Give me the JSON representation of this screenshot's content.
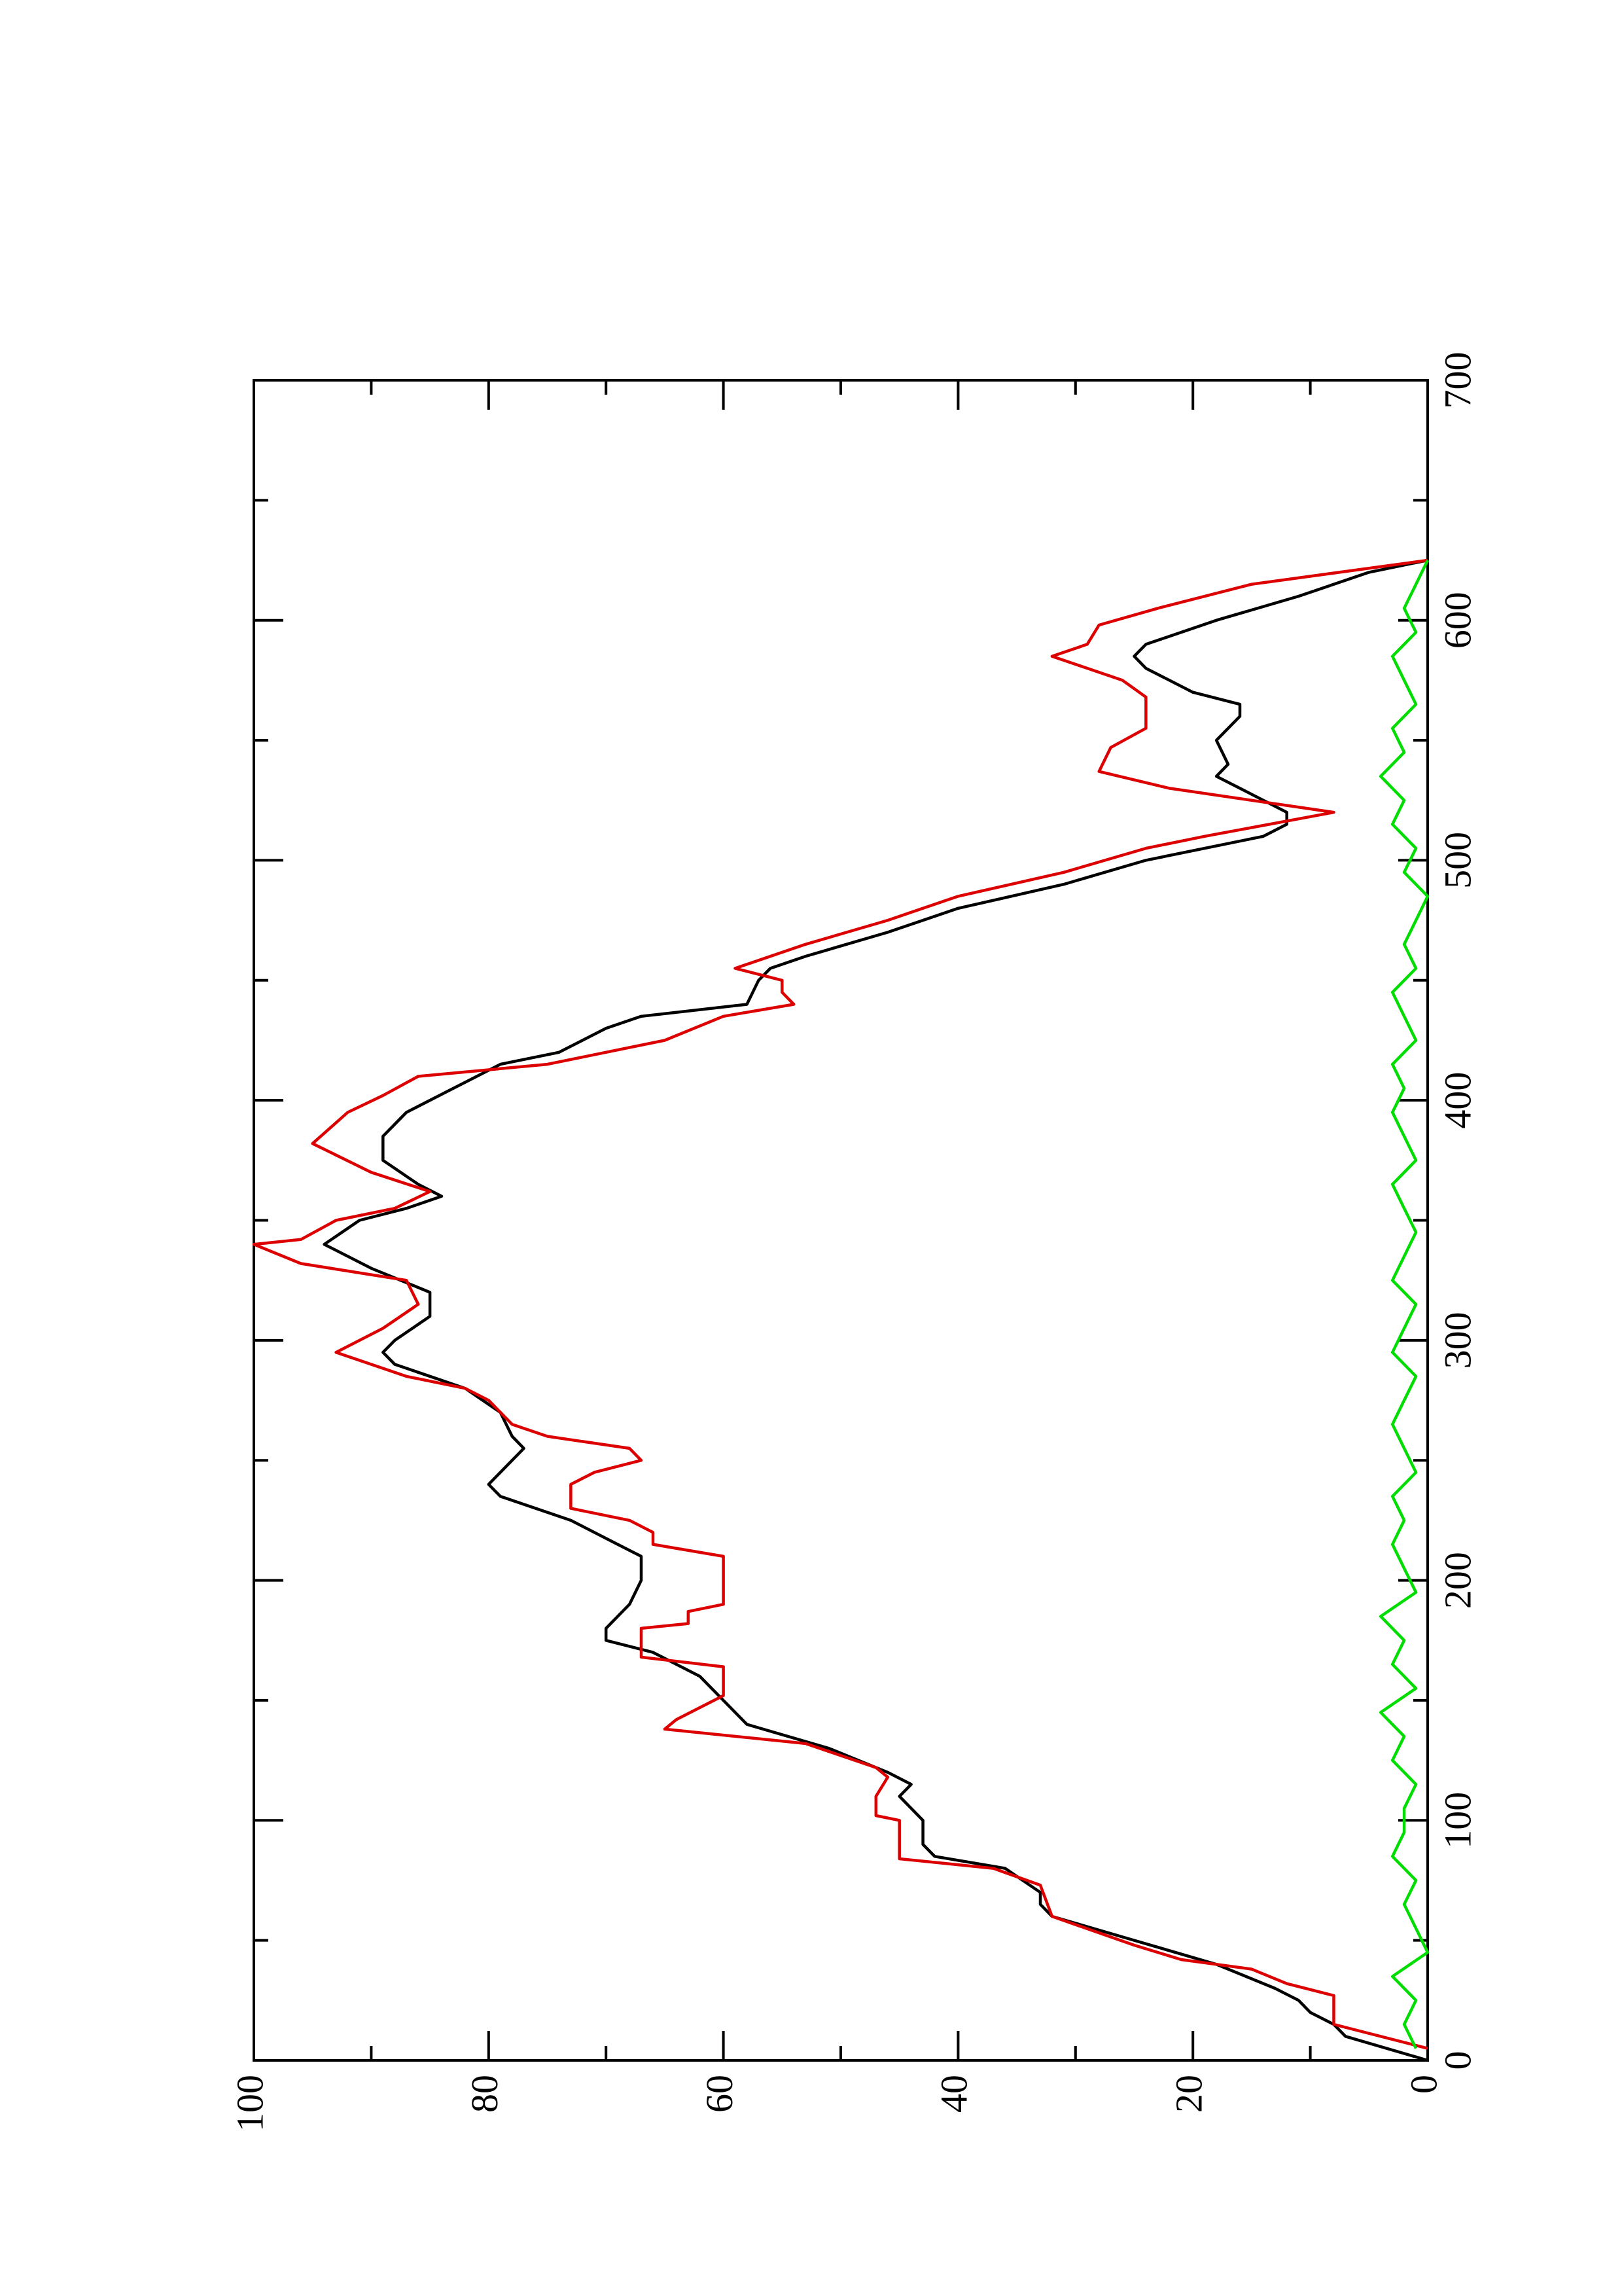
{
  "chart_data": {
    "type": "line",
    "xlim": [
      0,
      700
    ],
    "xticks": [
      0,
      100,
      200,
      300,
      400,
      500,
      600,
      700
    ],
    "xminorticks": [
      50,
      150,
      250,
      350,
      450,
      550,
      650
    ],
    "ylim": [
      0,
      100
    ],
    "yticks": [
      0,
      20,
      40,
      60,
      80,
      100
    ],
    "yminorticks": [
      10,
      30,
      50,
      70,
      90
    ],
    "series": [
      {
        "color": "#000000",
        "x": [
          0,
          10,
          15,
          20,
          25,
          30,
          40,
          50,
          60,
          65,
          70,
          80,
          85,
          90,
          100,
          110,
          115,
          120,
          130,
          140,
          150,
          160,
          170,
          175,
          180,
          190,
          200,
          210,
          215,
          225,
          235,
          240,
          250,
          255,
          260,
          270,
          280,
          290,
          295,
          300,
          310,
          320,
          330,
          340,
          350,
          355,
          360,
          365,
          375,
          385,
          395,
          405,
          415,
          420,
          430,
          435,
          440,
          450,
          455,
          460,
          470,
          480,
          490,
          500,
          510,
          515,
          520,
          530,
          535,
          540,
          550,
          560,
          565,
          570,
          580,
          585,
          590,
          600,
          610,
          620,
          625
        ],
        "values": [
          0,
          7,
          8,
          10,
          11,
          13,
          18,
          25,
          32,
          33,
          33,
          36,
          42,
          43,
          43,
          45,
          44,
          46,
          51,
          58,
          60,
          62,
          66,
          70,
          70,
          68,
          67,
          67,
          69,
          73,
          79,
          80,
          78,
          77,
          78,
          79,
          82,
          88,
          89,
          88,
          85,
          85,
          90,
          94,
          91,
          87,
          84,
          86,
          89,
          89,
          87,
          83,
          79,
          74,
          70,
          67,
          58,
          57,
          56,
          53,
          46,
          40,
          31,
          24,
          14,
          12,
          12,
          16,
          18,
          17,
          18,
          16,
          16,
          20,
          24,
          25,
          24,
          18,
          11,
          5,
          0
        ]
      },
      {
        "color": "#dd0000",
        "x": [
          5,
          15,
          27,
          32,
          38,
          42,
          48,
          60,
          73,
          80,
          84,
          100,
          102,
          110,
          118,
          122,
          132,
          138,
          142,
          152,
          164,
          168,
          180,
          182,
          187,
          190,
          210,
          215,
          220,
          225,
          230,
          240,
          245,
          250,
          255,
          260,
          265,
          275,
          280,
          285,
          295,
          305,
          315,
          325,
          332,
          340,
          342,
          350,
          355,
          362,
          370,
          382,
          395,
          402,
          410,
          415,
          425,
          435,
          440,
          445,
          450,
          455,
          465,
          475,
          485,
          495,
          505,
          510,
          520,
          530,
          537,
          547,
          555,
          568,
          575,
          585,
          590,
          598,
          605,
          615,
          625
        ],
        "values": [
          0,
          8,
          8,
          12,
          15,
          21,
          25,
          32,
          33,
          37,
          45,
          45,
          47,
          47,
          46,
          47,
          53,
          65,
          64,
          60,
          60,
          67,
          67,
          63,
          63,
          60,
          60,
          66,
          66,
          68,
          73,
          73,
          71,
          67,
          68,
          75,
          78,
          80,
          82,
          87,
          93,
          89,
          86,
          87,
          96,
          100,
          96,
          93,
          88,
          85,
          90,
          95,
          92,
          89,
          86,
          75,
          65,
          60,
          54,
          55,
          55,
          59,
          53,
          46,
          40,
          31,
          24,
          19,
          8,
          22,
          28,
          27,
          24,
          24,
          26,
          32,
          29,
          28,
          23,
          15,
          0
        ]
      },
      {
        "color": "#00dd00",
        "x": [
          5,
          15,
          25,
          35,
          45,
          55,
          65,
          75,
          85,
          95,
          105,
          115,
          125,
          135,
          145,
          155,
          165,
          175,
          185,
          195,
          205,
          215,
          225,
          235,
          245,
          255,
          265,
          275,
          285,
          295,
          305,
          315,
          325,
          335,
          345,
          355,
          365,
          375,
          385,
          395,
          405,
          415,
          425,
          435,
          445,
          455,
          465,
          475,
          485,
          495,
          505,
          515,
          525,
          535,
          545,
          555,
          565,
          575,
          585,
          595,
          605,
          615,
          625
        ],
        "values": [
          1,
          2,
          1,
          3,
          0,
          1,
          2,
          1,
          3,
          2,
          2,
          1,
          3,
          2,
          4,
          1,
          3,
          2,
          4,
          1,
          2,
          3,
          2,
          3,
          1,
          2,
          3,
          2,
          1,
          3,
          2,
          1,
          3,
          2,
          1,
          2,
          3,
          1,
          2,
          3,
          2,
          3,
          1,
          2,
          3,
          1,
          2,
          1,
          0,
          2,
          1,
          3,
          2,
          4,
          2,
          3,
          1,
          2,
          3,
          1,
          2,
          1,
          0
        ]
      }
    ]
  }
}
